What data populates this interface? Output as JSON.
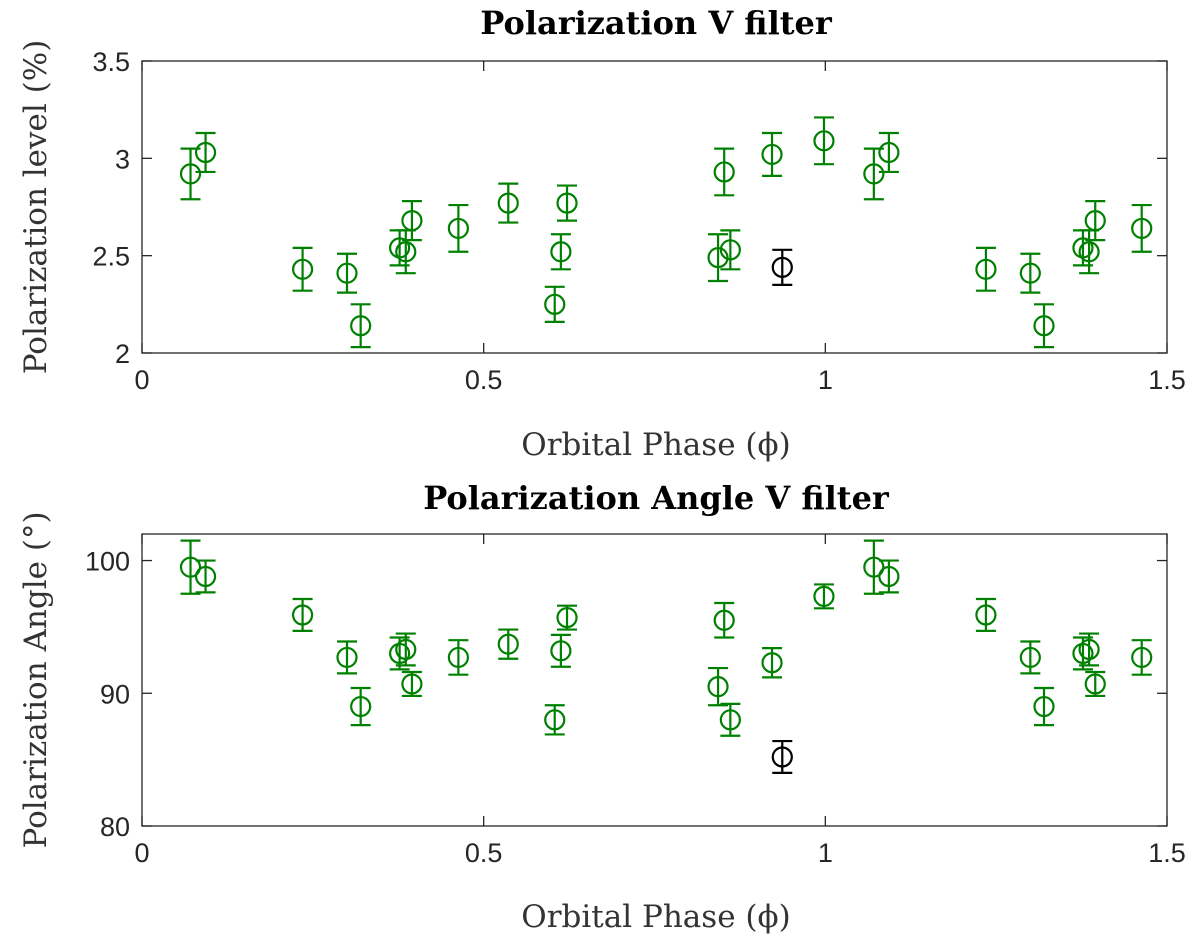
{
  "chart_data": [
    {
      "type": "scatter",
      "title": "Polarization V filter",
      "xlabel": "Orbital Phase (ϕ)",
      "ylabel": "Polarization level (%)",
      "xlim": [
        0,
        1.5
      ],
      "ylim": [
        2,
        3.5
      ],
      "xticks": [
        0,
        0.5,
        1,
        1.5
      ],
      "xtick_labels": [
        "0",
        "0.5",
        "1",
        "1.5"
      ],
      "yticks": [
        2,
        2.5,
        3,
        3.5
      ],
      "ytick_labels": [
        "2",
        "2.5",
        "3",
        "3.5"
      ],
      "grid": false,
      "legend": "none",
      "series": [
        {
          "color": "#008000",
          "marker": "open-circle",
          "points": [
            {
              "x": 0.071,
              "y": 2.92,
              "err": 0.13
            },
            {
              "x": 0.093,
              "y": 3.03,
              "err": 0.1
            },
            {
              "x": 0.235,
              "y": 2.43,
              "err": 0.11
            },
            {
              "x": 0.3,
              "y": 2.41,
              "err": 0.1
            },
            {
              "x": 0.32,
              "y": 2.14,
              "err": 0.11
            },
            {
              "x": 0.377,
              "y": 2.54,
              "err": 0.09
            },
            {
              "x": 0.386,
              "y": 2.52,
              "err": 0.11
            },
            {
              "x": 0.395,
              "y": 2.68,
              "err": 0.1
            },
            {
              "x": 0.463,
              "y": 2.64,
              "err": 0.12
            },
            {
              "x": 0.536,
              "y": 2.77,
              "err": 0.1
            },
            {
              "x": 0.604,
              "y": 2.25,
              "err": 0.09
            },
            {
              "x": 0.613,
              "y": 2.52,
              "err": 0.09
            },
            {
              "x": 0.622,
              "y": 2.77,
              "err": 0.09
            },
            {
              "x": 0.843,
              "y": 2.49,
              "err": 0.12
            },
            {
              "x": 0.852,
              "y": 2.93,
              "err": 0.12
            },
            {
              "x": 0.861,
              "y": 2.53,
              "err": 0.1
            },
            {
              "x": 0.922,
              "y": 3.02,
              "err": 0.11
            },
            {
              "x": 0.998,
              "y": 3.09,
              "err": 0.12
            },
            {
              "x": 1.071,
              "y": 2.92,
              "err": 0.13
            },
            {
              "x": 1.093,
              "y": 3.03,
              "err": 0.1
            },
            {
              "x": 1.235,
              "y": 2.43,
              "err": 0.11
            },
            {
              "x": 1.3,
              "y": 2.41,
              "err": 0.1
            },
            {
              "x": 1.32,
              "y": 2.14,
              "err": 0.11
            },
            {
              "x": 1.377,
              "y": 2.54,
              "err": 0.09
            },
            {
              "x": 1.386,
              "y": 2.52,
              "err": 0.11
            },
            {
              "x": 1.395,
              "y": 2.68,
              "err": 0.1
            },
            {
              "x": 1.463,
              "y": 2.64,
              "err": 0.12
            }
          ]
        },
        {
          "color": "#000000",
          "marker": "open-circle",
          "points": [
            {
              "x": 0.937,
              "y": 2.44,
              "err": 0.09
            }
          ]
        }
      ]
    },
    {
      "type": "scatter",
      "title": "Polarization Angle V filter",
      "xlabel": "Orbital Phase (ϕ)",
      "ylabel": "Polarization Angle (°)",
      "xlim": [
        0,
        1.5
      ],
      "ylim": [
        80,
        102
      ],
      "xticks": [
        0,
        0.5,
        1,
        1.5
      ],
      "xtick_labels": [
        "0",
        "0.5",
        "1",
        "1.5"
      ],
      "yticks": [
        80,
        90,
        100
      ],
      "ytick_labels": [
        "80",
        "90",
        "100"
      ],
      "grid": false,
      "legend": "none",
      "series": [
        {
          "color": "#008000",
          "marker": "open-circle",
          "points": [
            {
              "x": 0.071,
              "y": 99.5,
              "err": 2.0
            },
            {
              "x": 0.093,
              "y": 98.8,
              "err": 1.2
            },
            {
              "x": 0.235,
              "y": 95.9,
              "err": 1.2
            },
            {
              "x": 0.3,
              "y": 92.7,
              "err": 1.2
            },
            {
              "x": 0.32,
              "y": 89.0,
              "err": 1.4
            },
            {
              "x": 0.377,
              "y": 93.0,
              "err": 1.2
            },
            {
              "x": 0.386,
              "y": 93.3,
              "err": 1.2
            },
            {
              "x": 0.395,
              "y": 90.7,
              "err": 0.9
            },
            {
              "x": 0.463,
              "y": 92.7,
              "err": 1.3
            },
            {
              "x": 0.536,
              "y": 93.7,
              "err": 1.1
            },
            {
              "x": 0.604,
              "y": 88.0,
              "err": 1.1
            },
            {
              "x": 0.613,
              "y": 93.2,
              "err": 1.2
            },
            {
              "x": 0.622,
              "y": 95.7,
              "err": 0.9
            },
            {
              "x": 0.843,
              "y": 90.5,
              "err": 1.4
            },
            {
              "x": 0.852,
              "y": 95.5,
              "err": 1.3
            },
            {
              "x": 0.861,
              "y": 88.0,
              "err": 1.2
            },
            {
              "x": 0.922,
              "y": 92.3,
              "err": 1.1
            },
            {
              "x": 0.998,
              "y": 97.3,
              "err": 0.9
            },
            {
              "x": 1.071,
              "y": 99.5,
              "err": 2.0
            },
            {
              "x": 1.093,
              "y": 98.8,
              "err": 1.2
            },
            {
              "x": 1.235,
              "y": 95.9,
              "err": 1.2
            },
            {
              "x": 1.3,
              "y": 92.7,
              "err": 1.2
            },
            {
              "x": 1.32,
              "y": 89.0,
              "err": 1.4
            },
            {
              "x": 1.377,
              "y": 93.0,
              "err": 1.2
            },
            {
              "x": 1.386,
              "y": 93.3,
              "err": 1.2
            },
            {
              "x": 1.395,
              "y": 90.7,
              "err": 0.9
            },
            {
              "x": 1.463,
              "y": 92.7,
              "err": 1.3
            }
          ]
        },
        {
          "color": "#000000",
          "marker": "open-circle",
          "points": [
            {
              "x": 0.937,
              "y": 85.2,
              "err": 1.2
            }
          ]
        }
      ]
    }
  ]
}
